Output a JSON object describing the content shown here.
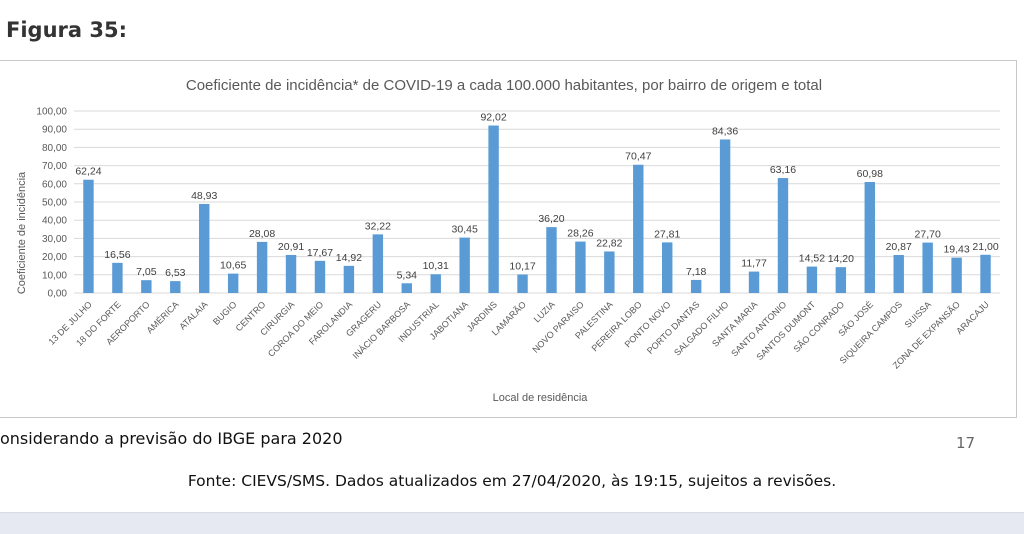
{
  "figure_label": "Figura 35:",
  "footnote": "onsiderando a previsão do IBGE para 2020",
  "page_number": "17",
  "source": "Fonte: CIEVS/SMS. Dados atualizados em 27/04/2020, às 19:15, sujeitos a revisões.",
  "colors": {
    "bar": "#5b9bd5",
    "grid": "#d9d9d9",
    "text": "#595959"
  },
  "chart_data": {
    "type": "bar",
    "title": "Coeficiente de incidência* de COVID-19 a cada 100.000 habitantes, por bairro de origem e total",
    "xlabel": "Local de residência",
    "ylabel": "Coeficiente de incidência",
    "ylim": [
      0,
      100
    ],
    "yticks": [
      "0,00",
      "10,00",
      "20,00",
      "30,00",
      "40,00",
      "50,00",
      "60,00",
      "70,00",
      "80,00",
      "90,00",
      "100,00"
    ],
    "grid": true,
    "categories": [
      "13 DE JULHO",
      "18 DO FORTE",
      "AEROPORTO",
      "AMÉRICA",
      "ATALAIA",
      "BUGIO",
      "CENTRO",
      "CIRURGIA",
      "COROA DO MEIO",
      "FAROLANDIA",
      "GRAGERU",
      "INÁCIO BARBOSA",
      "INDUSTRIAL",
      "JABOTIANA",
      "JARDINS",
      "LAMARÃO",
      "LUZIA",
      "NOVO PARAISO",
      "PALESTINA",
      "PEREIRA LOBO",
      "PONTO NOVO",
      "PORTO DANTAS",
      "SALGADO FILHO",
      "SANTA MARIA",
      "SANTO ANTONIO",
      "SANTOS DUMONT",
      "SÃO CONRADO",
      "SÃO JOSÉ",
      "SIQUEIRA CAMPOS",
      "SUISSA",
      "ZONA DE EXPANSÃO",
      "ARACAJU"
    ],
    "values": [
      62.24,
      16.56,
      7.05,
      6.53,
      48.93,
      10.65,
      28.08,
      20.91,
      17.67,
      14.92,
      32.22,
      5.34,
      10.31,
      30.45,
      92.02,
      10.17,
      36.2,
      28.26,
      22.82,
      70.47,
      27.81,
      7.18,
      84.36,
      11.77,
      63.16,
      14.52,
      14.2,
      60.98,
      20.87,
      27.7,
      19.43,
      21.0
    ],
    "labels": [
      "62,24",
      "16,56",
      "7,05",
      "6,53",
      "48,93",
      "10,65",
      "28,08",
      "20,91",
      "17,67",
      "14,92",
      "32,22",
      "5,34",
      "10,31",
      "30,45",
      "92,02",
      "10,17",
      "36,20",
      "28,26",
      "22,82",
      "70,47",
      "27,81",
      "7,18",
      "84,36",
      "11,77",
      "63,16",
      "14,52",
      "14,20",
      "60,98",
      "20,87",
      "27,70",
      "19,43",
      "21,00"
    ]
  }
}
